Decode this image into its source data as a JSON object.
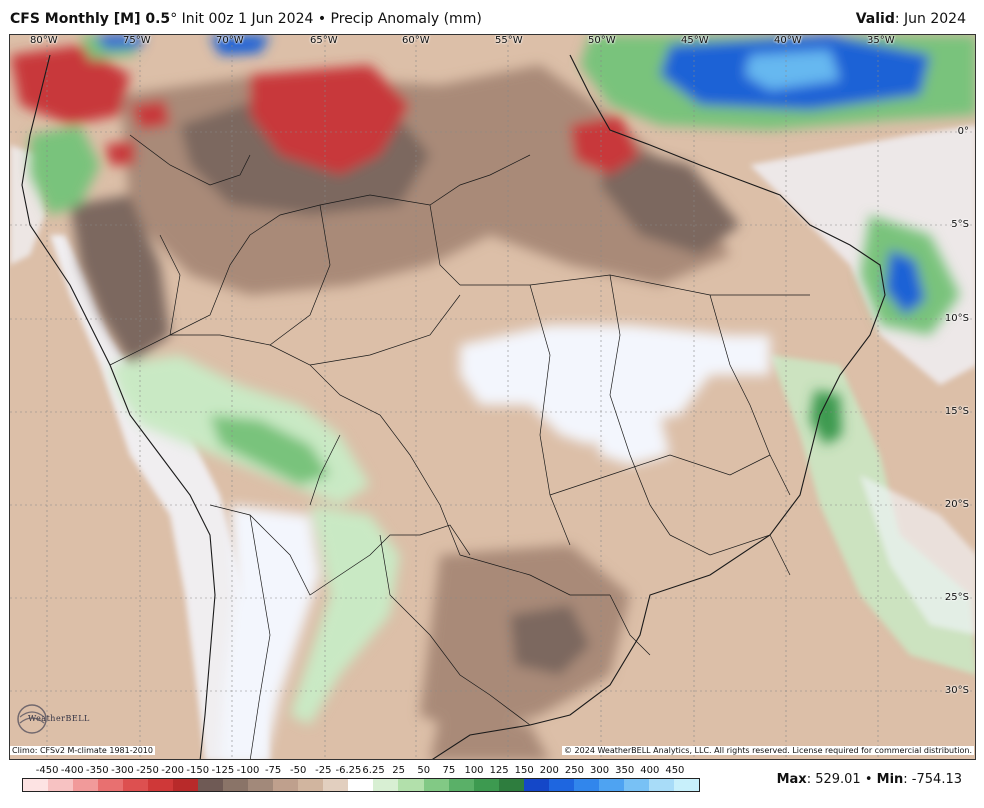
{
  "header": {
    "model": "CFS Monthly [M] 0.5",
    "degree": "°",
    "init": " Init 00z 1 Jun 2024 • Precip Anomaly (mm)",
    "valid_label": "Valid",
    "valid_value": ": Jun 2024"
  },
  "map": {
    "region": "South America",
    "longitude_labels": [
      "80°W",
      "75°W",
      "70°W",
      "65°W",
      "60°W",
      "55°W",
      "50°W",
      "45°W",
      "40°W",
      "35°W"
    ],
    "latitude_labels": [
      "0°",
      "5°S",
      "10°S",
      "15°S",
      "20°S",
      "25°S",
      "30°S"
    ],
    "colors": {
      "ocean_bg": "#dcbfa8",
      "land_brown": "#d3b29a",
      "dry_mid": "#a98a78",
      "dry_dark": "#7c675f",
      "dry_red": "#c8393b",
      "near_normal": "#f3f6fd",
      "wet_light": "#c9e9c4",
      "wet_green": "#79c37b",
      "wet_dark_green": "#3d9a50",
      "wet_blue": "#1a62d6",
      "wet_light_blue": "#66b8f0",
      "border": "#1a1a1a"
    }
  },
  "footer": {
    "climo": "Climo: CFSv2 M-climate 1981-2010",
    "copyright": "© 2024 WeatherBELL Analytics, LLC. All rights reserved. License required for commercial distribution.",
    "logo_text": "WeatherBELL",
    "max_label": "Max",
    "max_value": ": 529.01 • ",
    "min_label": "Min",
    "min_value": ": -754.13"
  },
  "colorbar": {
    "ticks": [
      "-450",
      "-400",
      "-350",
      "-300",
      "-250",
      "-200",
      "-150",
      "-125",
      "-100",
      "-75",
      "-50",
      "-25",
      "-6.25",
      "6.25",
      "25",
      "50",
      "75",
      "100",
      "125",
      "150",
      "200",
      "250",
      "300",
      "350",
      "400",
      "450"
    ],
    "colors": [
      "#fde3e3",
      "#f7c2c2",
      "#f19a9a",
      "#e87070",
      "#dd5050",
      "#cf3838",
      "#b82a2a",
      "#6f5a55",
      "#8a7468",
      "#a2897a",
      "#bfa08d",
      "#d1b59f",
      "#e2cfbf",
      "#ffffff",
      "#d8efd3",
      "#b2e0ab",
      "#82c985",
      "#5ab068",
      "#3d9a50",
      "#2e7d3e",
      "#1447c8",
      "#1e66e0",
      "#3186ec",
      "#4ea3f2",
      "#78c1f5",
      "#a8dcf8",
      "#c8f0fb"
    ]
  }
}
